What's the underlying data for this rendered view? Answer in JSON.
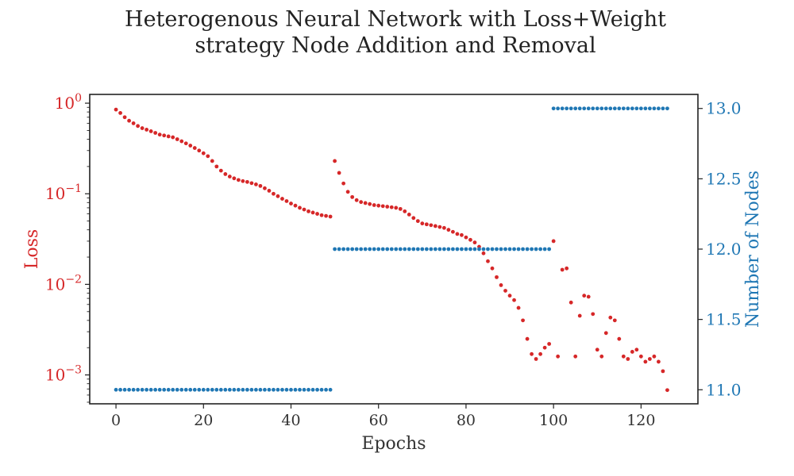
{
  "chart_data": {
    "type": "scatter",
    "title": "Heterogenous Neural Network with Loss+Weight strategy Node Addition and Removal",
    "title_lines": [
      "Heterogenous Neural Network with Loss+Weight",
      "strategy Node Addition and Removal"
    ],
    "xlabel": "Epochs",
    "ylabel_left": "Loss",
    "ylabel_right": "Number of Nodes",
    "xlim": [
      -6,
      133
    ],
    "ylim_left": [
      0.00048,
      1.25
    ],
    "ylim_right": [
      10.9,
      13.1
    ],
    "left_scale": "log",
    "grid": false,
    "x_ticks": [
      "0",
      "20",
      "40",
      "60",
      "80",
      "100",
      "120"
    ],
    "left_ticks": [
      {
        "base": "10",
        "exp": "0",
        "value": 1
      },
      {
        "base": "10",
        "exp": "−1",
        "value": 0.1
      },
      {
        "base": "10",
        "exp": "−2",
        "value": 0.01
      },
      {
        "base": "10",
        "exp": "−3",
        "value": 0.001
      }
    ],
    "right_ticks": [
      "11.0",
      "11.5",
      "12.0",
      "12.5",
      "13.0"
    ],
    "colors": {
      "loss": "#d62728",
      "nodes": "#1f77b4",
      "axis_text": "#333333"
    },
    "series": [
      {
        "name": "Loss",
        "axis": "left",
        "color": "#d62728",
        "x": [
          0,
          1,
          2,
          3,
          4,
          5,
          6,
          7,
          8,
          9,
          10,
          11,
          12,
          13,
          14,
          15,
          16,
          17,
          18,
          19,
          20,
          21,
          22,
          23,
          24,
          25,
          26,
          27,
          28,
          29,
          30,
          31,
          32,
          33,
          34,
          35,
          36,
          37,
          38,
          39,
          40,
          41,
          42,
          43,
          44,
          45,
          46,
          47,
          48,
          49,
          50,
          51,
          52,
          53,
          54,
          55,
          56,
          57,
          58,
          59,
          60,
          61,
          62,
          63,
          64,
          65,
          66,
          67,
          68,
          69,
          70,
          71,
          72,
          73,
          74,
          75,
          76,
          77,
          78,
          79,
          80,
          81,
          82,
          83,
          84,
          85,
          86,
          87,
          88,
          89,
          90,
          91,
          92,
          93,
          94,
          95,
          96,
          97,
          98,
          99,
          100,
          101,
          102,
          103,
          104,
          105,
          106,
          107,
          108,
          109,
          110,
          111,
          112,
          113,
          114,
          115,
          116,
          117,
          118,
          119,
          120,
          121,
          122,
          123,
          124,
          125,
          126
        ],
        "values": [
          0.85,
          0.78,
          0.7,
          0.64,
          0.6,
          0.56,
          0.53,
          0.51,
          0.49,
          0.47,
          0.45,
          0.44,
          0.43,
          0.42,
          0.4,
          0.38,
          0.36,
          0.34,
          0.32,
          0.3,
          0.28,
          0.26,
          0.23,
          0.2,
          0.18,
          0.165,
          0.155,
          0.148,
          0.142,
          0.138,
          0.135,
          0.131,
          0.127,
          0.122,
          0.115,
          0.108,
          0.1,
          0.094,
          0.088,
          0.083,
          0.078,
          0.074,
          0.07,
          0.067,
          0.064,
          0.062,
          0.06,
          0.058,
          0.057,
          0.056,
          0.23,
          0.17,
          0.13,
          0.105,
          0.092,
          0.085,
          0.081,
          0.079,
          0.077,
          0.075,
          0.074,
          0.073,
          0.072,
          0.071,
          0.07,
          0.068,
          0.064,
          0.059,
          0.054,
          0.05,
          0.047,
          0.046,
          0.045,
          0.044,
          0.043,
          0.042,
          0.04,
          0.038,
          0.036,
          0.035,
          0.033,
          0.031,
          0.029,
          0.026,
          0.022,
          0.018,
          0.015,
          0.012,
          0.0098,
          0.0085,
          0.0075,
          0.0067,
          0.0055,
          0.004,
          0.0025,
          0.0017,
          0.0015,
          0.0017,
          0.002,
          0.0022,
          0.03,
          0.0016,
          0.0145,
          0.015,
          0.0063,
          0.0016,
          0.0045,
          0.0075,
          0.0073,
          0.0047,
          0.0019,
          0.0016,
          0.0029,
          0.0043,
          0.004,
          0.0025,
          0.0016,
          0.0015,
          0.0018,
          0.0019,
          0.0016,
          0.0014,
          0.0015,
          0.0016,
          0.0014,
          0.0011,
          0.00068
        ]
      },
      {
        "name": "Number of Nodes",
        "axis": "right",
        "color": "#1f77b4",
        "segments": [
          {
            "x_start": 0,
            "x_end": 49,
            "value": 11
          },
          {
            "x_start": 50,
            "x_end": 99,
            "value": 12
          },
          {
            "x_start": 100,
            "x_end": 126,
            "value": 13
          }
        ]
      }
    ]
  }
}
